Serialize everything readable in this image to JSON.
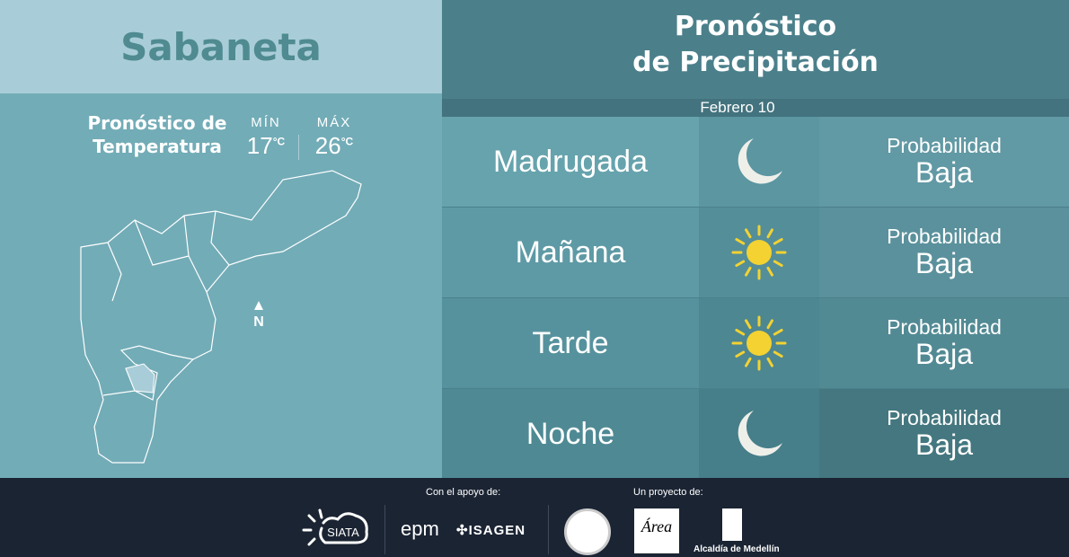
{
  "location": "Sabaneta",
  "temperature": {
    "title_line1": "Pronóstico de",
    "title_line2": "Temperatura",
    "min_label": "MÍN",
    "min_value": "17",
    "max_label": "MÁX",
    "max_value": "26",
    "unit": "°C"
  },
  "map": {
    "north_label": "N"
  },
  "precipitation": {
    "title_line1": "Pronóstico",
    "title_line2": "de Precipitación",
    "date": "Febrero 10",
    "rows": [
      {
        "period": "Madrugada",
        "icon": "moon-icon",
        "prob_label": "Probabilidad",
        "prob_value": "Baja",
        "colors": [
          "#66a3ad",
          "#5b96a1",
          "#6199a4"
        ]
      },
      {
        "period": "Mañana",
        "icon": "sun-icon",
        "prob_label": "Probabilidad",
        "prob_value": "Baja",
        "colors": [
          "#5e9aa5",
          "#548e99",
          "#5a919c"
        ]
      },
      {
        "period": "Tarde",
        "icon": "sun-icon",
        "prob_label": "Probabilidad",
        "prob_value": "Baja",
        "colors": [
          "#56929d",
          "#4d8791",
          "#528a94"
        ]
      },
      {
        "period": "Noche",
        "icon": "moon-icon",
        "prob_label": "Probabilidad",
        "prob_value": "Baja",
        "colors": [
          "#4f8a94",
          "#467f89",
          "#44777f"
        ]
      }
    ]
  },
  "footer": {
    "support_label": "Con el apoyo de:",
    "project_label": "Un proyecto de:",
    "logos": [
      "SIATA",
      "epm",
      "ISAGEN",
      "Área Metropolitana Valle de Aburrá",
      "Alcaldía de Medellín"
    ]
  }
}
